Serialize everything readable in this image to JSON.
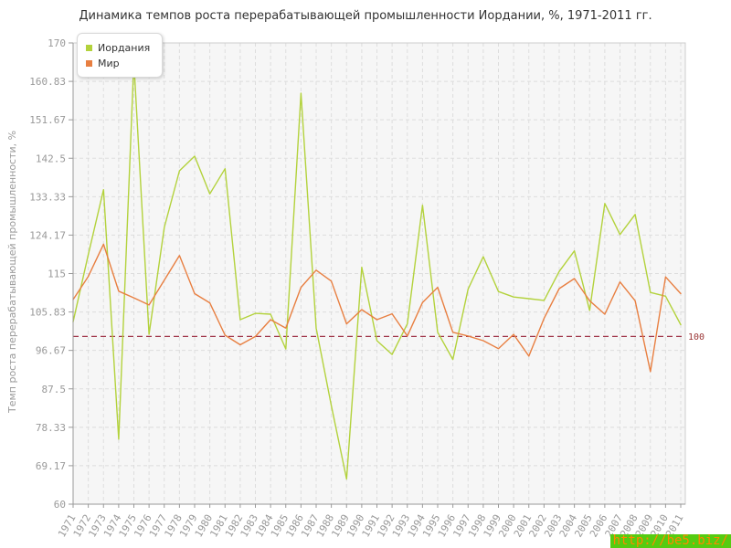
{
  "chart_data": {
    "type": "line",
    "title": "Динамика темпов роста перерабатывающей промышленности Иордании, %, 1971-2011 гг.",
    "ylabel": "Темп роста перерабатывающей промышленности, %",
    "xlabel": "",
    "ylim": [
      60,
      170
    ],
    "grid": true,
    "legend_position": "top-left",
    "plot_bg": "#f6f6f6",
    "grid_color": "#dddddd",
    "border_color": "#cccccc",
    "axis_color": "#999999",
    "tick_label_color": "#999999",
    "y_ticks": [
      "170",
      "160.83",
      "151.67",
      "142.5",
      "133.33",
      "124.17",
      "115",
      "105.83",
      "96.67",
      "87.5",
      "78.33",
      "69.17",
      "60"
    ],
    "categories": [
      "1971",
      "1972",
      "1973",
      "1974",
      "1975",
      "1976",
      "1977",
      "1978",
      "1979",
      "1980",
      "1981",
      "1982",
      "1983",
      "1984",
      "1985",
      "1986",
      "1987",
      "1988",
      "1989",
      "1990",
      "1991",
      "1992",
      "1993",
      "1994",
      "1995",
      "1996",
      "1997",
      "1998",
      "1999",
      "2000",
      "2001",
      "2002",
      "2003",
      "2004",
      "2005",
      "2006",
      "2007",
      "2008",
      "2009",
      "2010",
      "2011"
    ],
    "series": [
      {
        "name": "Иордания",
        "color": "#b3d23c",
        "values": [
          103.5,
          119.5,
          135.0,
          75.5,
          165.5,
          100.5,
          126.0,
          139.5,
          143.0,
          134.0,
          140.0,
          104.0,
          105.5,
          105.3,
          97.0,
          158.0,
          102.0,
          83.5,
          66.0,
          116.5,
          99.0,
          95.7,
          103.0,
          131.3,
          101.0,
          94.5,
          111.3,
          119.0,
          110.7,
          109.4,
          109.0,
          108.6,
          115.5,
          120.4,
          106.2,
          131.7,
          124.3,
          129.1,
          110.5,
          109.6,
          102.8
        ]
      },
      {
        "name": "Мир",
        "color": "#e87f41",
        "values": [
          108.8,
          114.3,
          122.0,
          110.8,
          109.2,
          107.5,
          113.4,
          119.3,
          110.2,
          108.0,
          100.3,
          98.0,
          100.0,
          104.0,
          102.0,
          111.7,
          115.8,
          113.2,
          103.0,
          106.4,
          104.0,
          105.4,
          100.1,
          108.1,
          111.7,
          101.0,
          100.1,
          99.0,
          97.1,
          100.5,
          95.3,
          104.3,
          111.4,
          113.8,
          108.5,
          105.3,
          113.0,
          108.5,
          91.6,
          114.2,
          110.2
        ]
      }
    ],
    "reference_line": {
      "value": 100,
      "label": "100",
      "color": "#9e3347",
      "label_color": "#993333"
    }
  },
  "footer": {
    "link_text": "http://be5.biz/",
    "link_bg": "#55cc11",
    "link_color": "#ff8800"
  }
}
